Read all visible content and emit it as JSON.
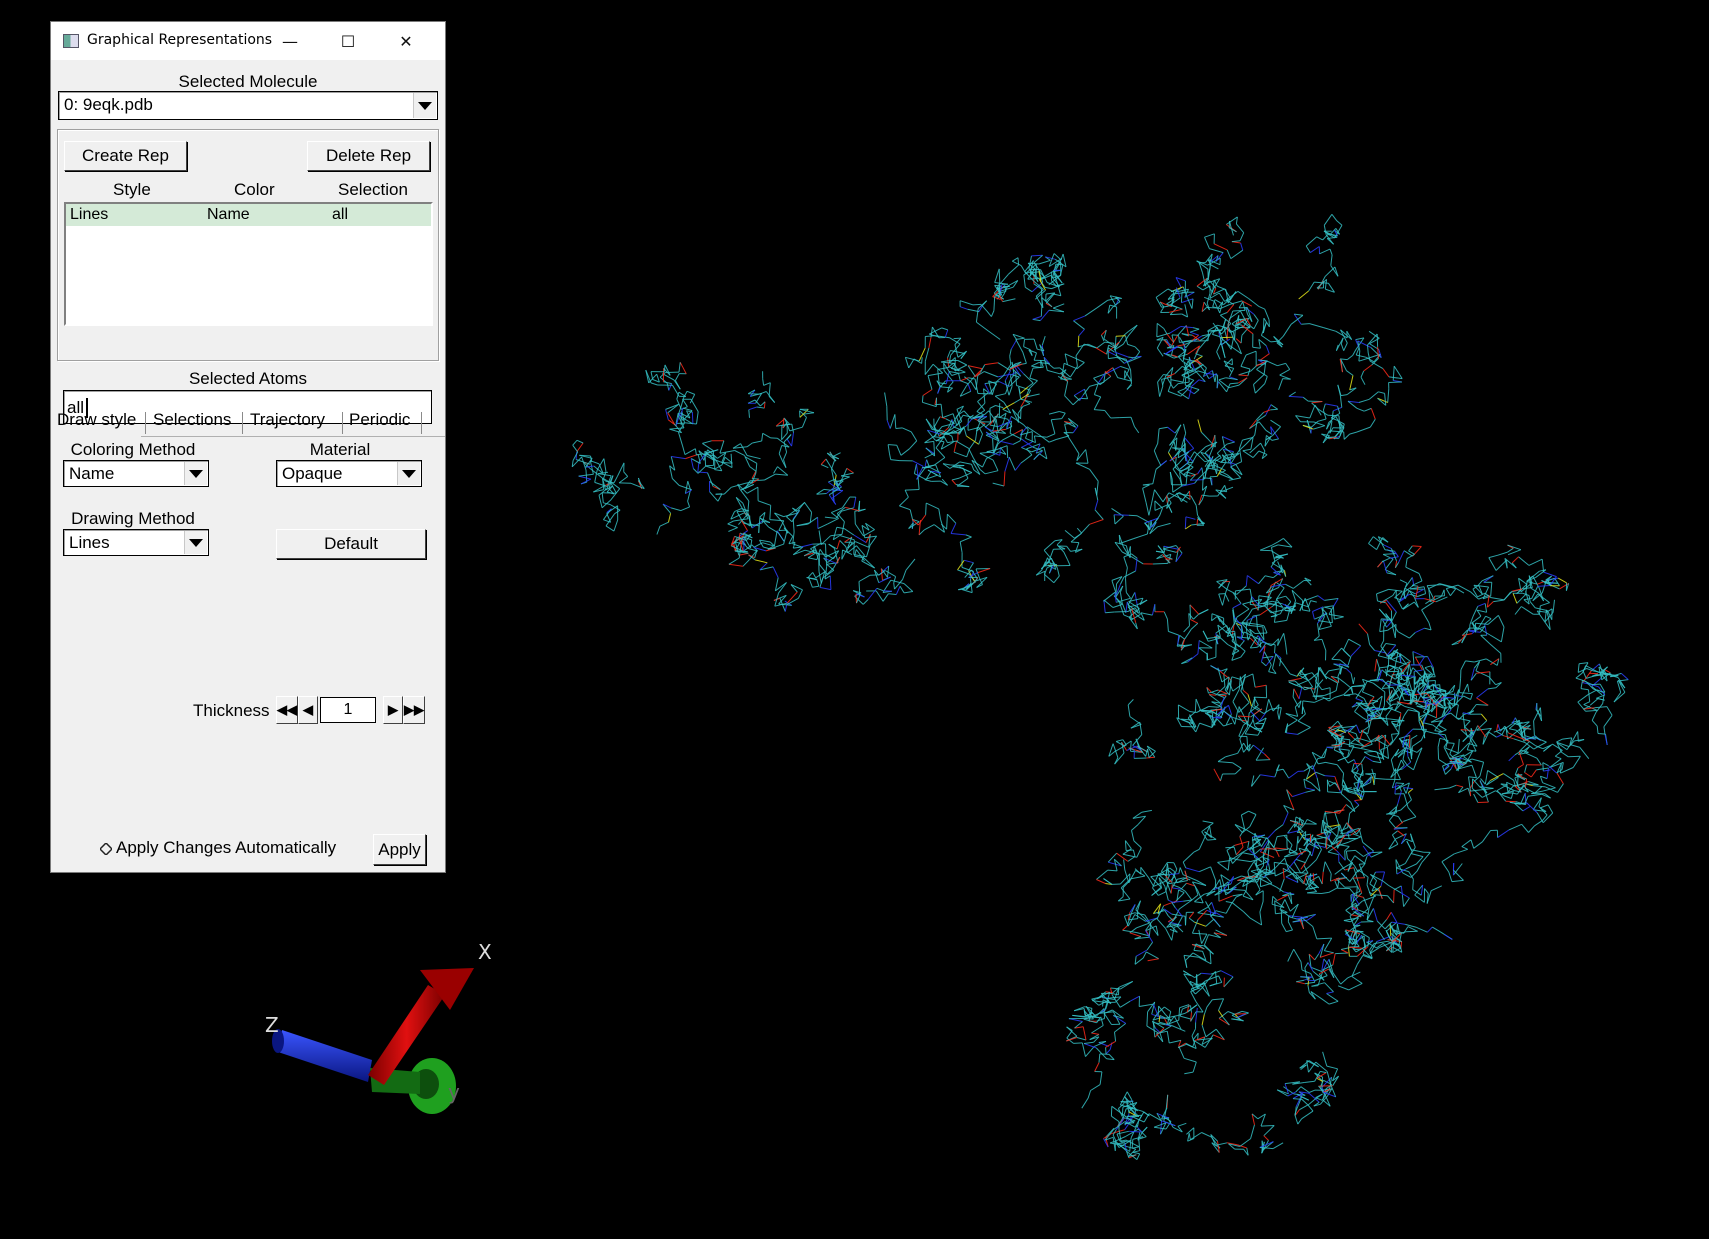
{
  "window": {
    "title": "Graphical Representations",
    "controls": {
      "minimize": "—",
      "maximize": "☐",
      "close": "✕"
    }
  },
  "molecule": {
    "label": "Selected Molecule",
    "selected": "0: 9eqk.pdb"
  },
  "reps": {
    "create_label": "Create Rep",
    "delete_label": "Delete Rep",
    "columns": [
      "Style",
      "Color",
      "Selection"
    ],
    "rows": [
      {
        "style": "Lines",
        "color": "Name",
        "selection": "all"
      }
    ]
  },
  "atoms": {
    "label": "Selected Atoms",
    "value": "all"
  },
  "tabs": [
    "Draw style",
    "Selections",
    "Trajectory",
    "Periodic"
  ],
  "draw": {
    "coloring_label": "Coloring Method",
    "coloring_value": "Name",
    "material_label": "Material",
    "material_value": "Opaque",
    "drawing_label": "Drawing Method",
    "drawing_value": "Lines",
    "default_label": "Default",
    "thickness_label": "Thickness",
    "thickness_value": "1"
  },
  "footer": {
    "auto_label": "Apply Changes Automatically",
    "apply_label": "Apply"
  },
  "axes": {
    "x": "X",
    "y": "y",
    "z": "Z"
  },
  "colors": {
    "background": "#000000",
    "carbon": "#35c0c4",
    "nitrogen": "#2a3dff",
    "oxygen": "#ff2a1a",
    "sulfur": "#e6e619",
    "axis_x": "#c00000",
    "axis_y": "#1fa01f",
    "axis_z": "#1a2fd0",
    "selected_row": "#d4ead7"
  }
}
